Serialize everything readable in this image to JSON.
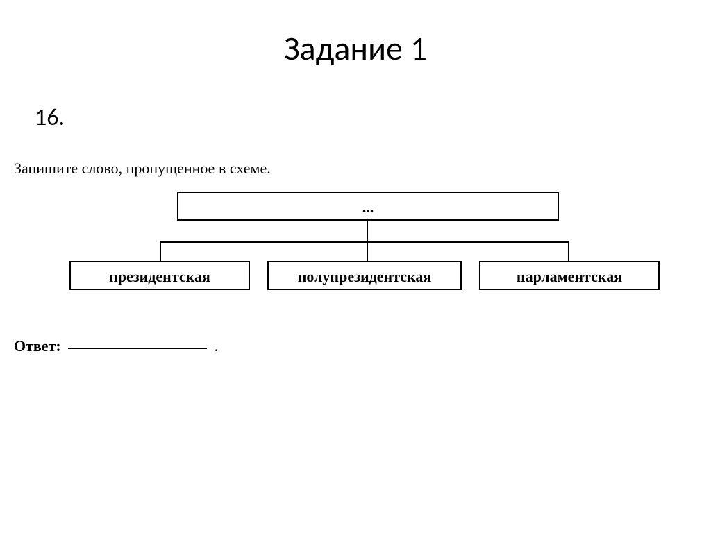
{
  "title": "Задание 1",
  "question_number": "16.",
  "instruction": "Запишите слово, пропущенное в схеме.",
  "diagram": {
    "type": "tree",
    "top_box": "...",
    "children": [
      "президентская",
      "полупрезидентская",
      "парламентская"
    ],
    "box_border_color": "#000000",
    "box_border_width": 2,
    "line_color": "#000000",
    "line_width": 2,
    "font_size": 22,
    "font_weight": "bold",
    "background_color": "#ffffff"
  },
  "answer": {
    "label": "Ответ:",
    "suffix": "."
  }
}
